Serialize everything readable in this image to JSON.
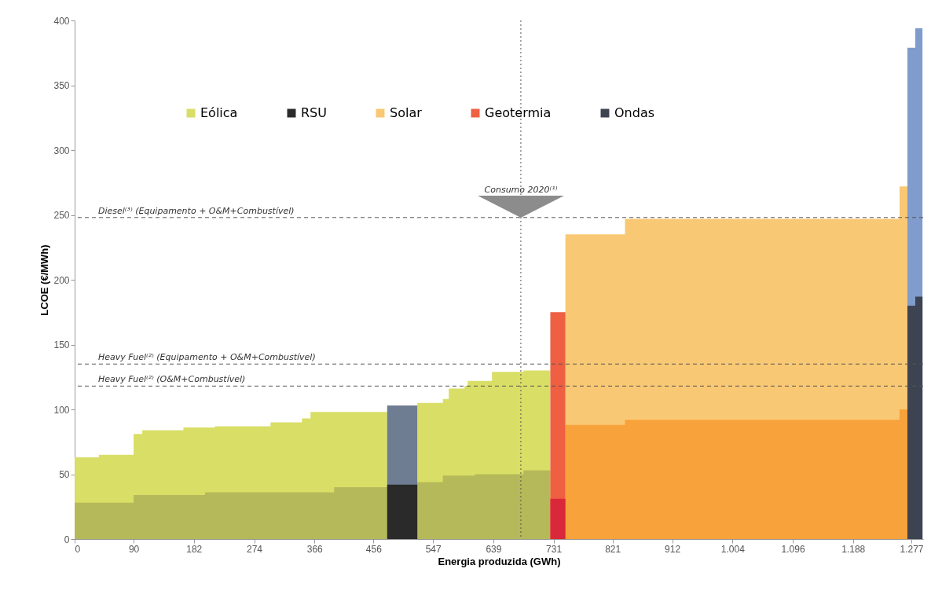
{
  "chart_data": {
    "type": "area",
    "xlabel": "Energia produzida (GWh)",
    "ylabel": "LCOE (€/MWh)",
    "xlim": [
      0,
      1295
    ],
    "ylim": [
      0,
      400
    ],
    "xticks": [
      0,
      90,
      182,
      274,
      366,
      456,
      547,
      639,
      731,
      821,
      912,
      {
        "value": 1004,
        "label": "1.004"
      },
      {
        "value": 1096,
        "label": "1.096"
      },
      {
        "value": 1188,
        "label": "1.188"
      },
      {
        "value": 1277,
        "label": "1.277"
      }
    ],
    "yticks": [
      0,
      50,
      100,
      150,
      200,
      250,
      300,
      350,
      400
    ],
    "legend": "top",
    "grid": false,
    "series": [
      {
        "name": "Eólica",
        "color": "#d9de66",
        "x": [
          0,
          0,
          37,
          37,
          90,
          90,
          103,
          103,
          166,
          166,
          214,
          214,
          299,
          299,
          347,
          347,
          360,
          360,
          477,
          477,
          523,
          523,
          562,
          562,
          571,
          571,
          595,
          595,
          600,
          600,
          637,
          637,
          685,
          685,
          726,
          726
        ],
        "values": [
          0,
          63,
          63,
          65,
          65,
          81,
          81,
          84,
          84,
          86,
          86,
          87,
          87,
          90,
          90,
          93,
          93,
          98,
          98,
          0,
          0,
          105,
          105,
          108,
          108,
          116,
          116,
          118,
          118,
          122,
          122,
          129,
          129,
          130,
          130,
          135
        ]
      },
      {
        "color": "#b5b95a",
        "x": [
          0,
          0,
          90,
          90,
          199,
          199,
          396,
          396,
          477,
          477,
          523,
          523,
          562,
          562,
          611,
          611,
          685,
          685,
          726,
          726
        ],
        "values": [
          0,
          28,
          28,
          34,
          34,
          36,
          36,
          40,
          40,
          0,
          0,
          44,
          44,
          49,
          49,
          50,
          50,
          53,
          53,
          54
        ]
      },
      {
        "color": "#6f7d92",
        "x": [
          477,
          477,
          523,
          523
        ],
        "values": [
          0,
          103,
          103,
          0
        ]
      },
      {
        "name": "RSU",
        "color": "#2b2a2a",
        "x": [
          477,
          477,
          523,
          523
        ],
        "values": [
          0,
          42,
          42,
          0
        ]
      },
      {
        "name": "Solar",
        "color": "#f9c874",
        "x": [
          749,
          749,
          840,
          840,
          1259,
          1259,
          1271,
          1271
        ],
        "values": [
          0,
          235,
          235,
          247,
          247,
          272,
          272,
          0
        ]
      },
      {
        "color": "#f7a23a",
        "x": [
          749,
          749,
          840,
          840,
          1259,
          1259,
          1271,
          1271
        ],
        "values": [
          0,
          88,
          88,
          92,
          92,
          100,
          100,
          0
        ]
      },
      {
        "name": "Geotermia",
        "color": "#ef5f42",
        "x": [
          726,
          726,
          749,
          749
        ],
        "values": [
          0,
          175,
          175,
          0
        ]
      },
      {
        "color": "#d9283a",
        "x": [
          726,
          726,
          749,
          749
        ],
        "values": [
          0,
          31,
          31,
          0
        ]
      },
      {
        "color": "#7f9ccc",
        "x": [
          1271,
          1271,
          1283,
          1283,
          1294,
          1294
        ],
        "values": [
          0,
          379,
          379,
          394,
          394,
          0
        ]
      },
      {
        "name": "Ondas",
        "color": "#3d4350",
        "x": [
          1271,
          1271,
          1283,
          1283,
          1294,
          1294
        ],
        "values": [
          0,
          180,
          180,
          187,
          187,
          0
        ]
      }
    ],
    "ref_lines": [
      {
        "axis": "y",
        "value": 248,
        "label": "Diesel⁽³⁾ (Equipamento + O&M+Combustível)",
        "line_style": "dashed"
      },
      {
        "axis": "y",
        "value": 135,
        "label": "Heavy Fuel⁽²⁾ (Equipamento + O&M+Combustível)",
        "line_style": "dashed"
      },
      {
        "axis": "y",
        "value": 118,
        "label": "Heavy Fuel⁽²⁾ (O&M+Combustível)",
        "line_style": "dashed"
      },
      {
        "axis": "x",
        "value": 681,
        "label": "Consumo 2020⁽¹⁾",
        "line_style": "dotted"
      }
    ]
  }
}
